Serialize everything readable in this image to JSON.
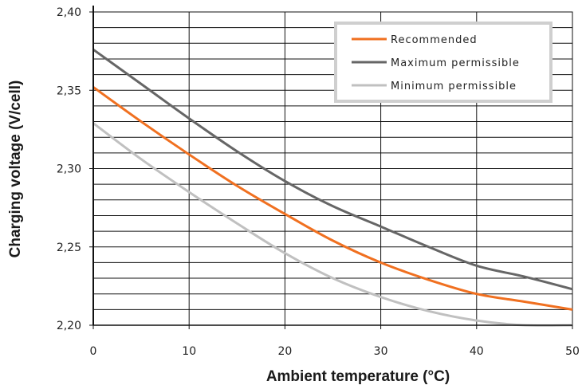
{
  "chart_data": {
    "type": "line",
    "xlabel": "Ambient temperature (°C)",
    "ylabel": "Charging voltage (V/cell)",
    "xlim": [
      0,
      50
    ],
    "ylim": [
      2.2,
      2.4
    ],
    "x_ticks": [
      "0",
      "10",
      "20",
      "30",
      "40",
      "50"
    ],
    "y_ticks": [
      "2,20",
      "2,25",
      "2,30",
      "2,35",
      "2,40"
    ],
    "grid": true,
    "legend_position": "top-right",
    "series": [
      {
        "name": "Recommended",
        "color": "#f07020",
        "x": [
          0,
          5,
          10,
          15,
          20,
          25,
          30,
          35,
          40,
          45,
          50
        ],
        "y": [
          2.352,
          2.33,
          2.309,
          2.289,
          2.271,
          2.254,
          2.24,
          2.229,
          2.22,
          2.215,
          2.21
        ]
      },
      {
        "name": "Maximum permissible",
        "color": "#666666",
        "x": [
          0,
          5,
          10,
          15,
          20,
          25,
          30,
          35,
          40,
          45,
          50
        ],
        "y": [
          2.376,
          2.354,
          2.332,
          2.311,
          2.292,
          2.276,
          2.263,
          2.25,
          2.238,
          2.231,
          2.223
        ]
      },
      {
        "name": "Minimum permissible",
        "color": "#c0c0c0",
        "x": [
          0,
          5,
          10,
          15,
          20,
          25,
          30,
          35,
          40,
          45,
          50
        ],
        "y": [
          2.329,
          2.306,
          2.285,
          2.265,
          2.246,
          2.23,
          2.218,
          2.209,
          2.203,
          2.2,
          2.2
        ]
      }
    ]
  }
}
